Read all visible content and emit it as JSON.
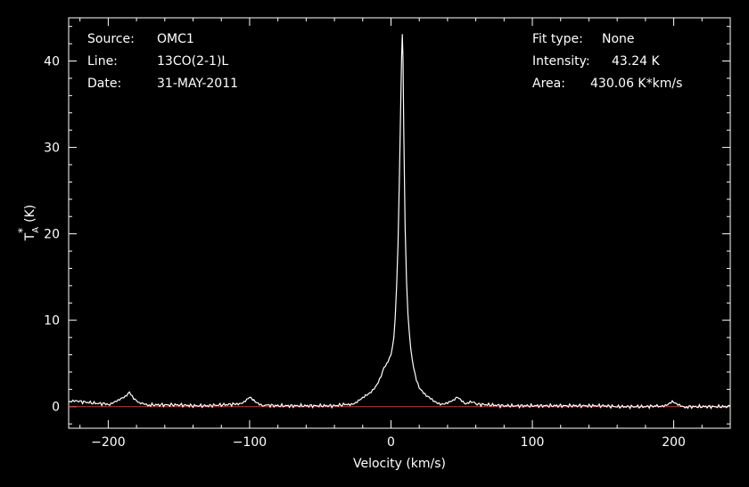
{
  "header": {
    "source_label": "Source:",
    "source_value": "OMC1",
    "line_label": "Line:",
    "line_value": "13CO(2-1)L",
    "date_label": "Date:",
    "date_value": "31-MAY-2011",
    "fit_label": "Fit type:",
    "fit_value": "None",
    "intensity_label": "Intensity:",
    "intensity_value": "43.24 K",
    "area_label": "Area:",
    "area_value": "430.06 K*km/s"
  },
  "chart_data": {
    "type": "line",
    "xlabel": "Velocity (km/s)",
    "ylabel": "T",
    "ylabel_sub": "A",
    "ylabel_sup": "*",
    "ylabel_unit": "(K)",
    "xlim": [
      -228,
      240
    ],
    "ylim": [
      -2.5,
      45
    ],
    "xticks": [
      -200,
      -100,
      0,
      100,
      200
    ],
    "xtick_labels": [
      "−200",
      "−100",
      "0",
      "100",
      "200"
    ],
    "yticks": [
      0,
      10,
      20,
      30,
      40
    ],
    "ytick_labels": [
      "0",
      "10",
      "20",
      "30",
      "40"
    ],
    "baseline": 0,
    "colors": {
      "background": "#000000",
      "spectrum": "#ffffff",
      "baseline": "#ff2020",
      "axes": "#ffffff"
    },
    "series": [
      {
        "name": "",
        "x": [
          -228,
          -220,
          -210,
          -200,
          -193,
          -188,
          -185,
          -182,
          -178,
          -170,
          -160,
          -150,
          -140,
          -130,
          -120,
          -110,
          -104,
          -100,
          -96,
          -90,
          -80,
          -70,
          -60,
          -50,
          -40,
          -30,
          -25,
          -20,
          -15,
          -10,
          -7,
          -5,
          -3,
          0,
          2,
          3,
          4,
          5,
          6,
          7,
          7.5,
          8,
          8.5,
          9,
          10,
          11,
          12,
          14,
          16,
          18,
          20,
          25,
          30,
          35,
          40,
          44,
          47,
          50,
          53,
          56,
          60,
          70,
          80,
          90,
          100,
          110,
          120,
          130,
          140,
          150,
          160,
          170,
          180,
          190,
          196,
          199,
          202,
          210,
          220,
          230,
          240
        ],
        "y": [
          0.5,
          0.6,
          0.4,
          0.3,
          0.6,
          1.2,
          1.8,
          1.0,
          0.3,
          0.2,
          0.2,
          0.2,
          0.1,
          0.1,
          0.2,
          0.3,
          0.6,
          1.0,
          0.5,
          0.2,
          0.1,
          0.1,
          0.1,
          0.1,
          0.1,
          0.3,
          0.5,
          0.9,
          1.6,
          2.6,
          3.5,
          4.4,
          4.8,
          6.0,
          8.0,
          10.5,
          14.0,
          19.0,
          27.0,
          36.0,
          40.5,
          43.2,
          40.0,
          32.0,
          21.0,
          14.5,
          10.5,
          6.5,
          4.5,
          3.2,
          2.3,
          1.2,
          0.6,
          0.4,
          0.4,
          0.6,
          1.1,
          0.8,
          0.4,
          0.5,
          0.3,
          0.2,
          0.1,
          0.1,
          0.1,
          0.1,
          0.1,
          0.1,
          0.1,
          0.1,
          0.0,
          0.0,
          0.0,
          0.1,
          0.3,
          0.5,
          0.2,
          0.0,
          0.0,
          0.0,
          0.0
        ]
      }
    ]
  }
}
